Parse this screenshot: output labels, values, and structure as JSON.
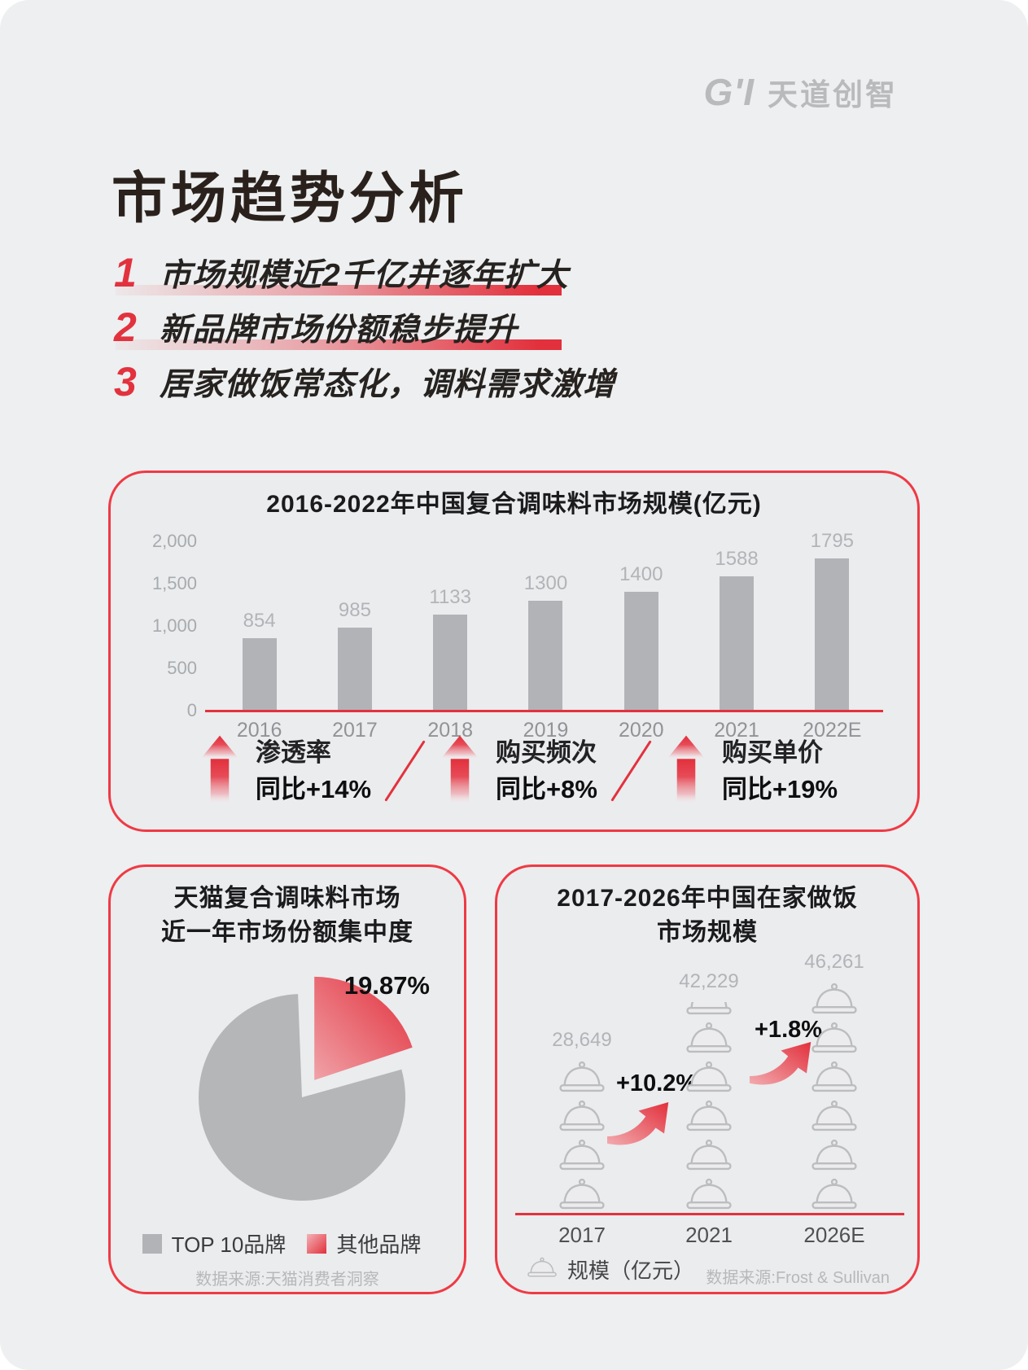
{
  "logo": {
    "mark": "G'I",
    "name": "天道创智"
  },
  "title": "市场趋势分析",
  "points": [
    {
      "num": "1",
      "text": "市场规模近2千亿并逐年扩大"
    },
    {
      "num": "2",
      "text": "新品牌市场份额稳步提升"
    },
    {
      "num": "3",
      "text": "居家做饭常态化，调料需求激增"
    }
  ],
  "indicators": {
    "items": [
      {
        "label": "渗透率",
        "value": "同比+14%"
      },
      {
        "label": "购买频次",
        "value": "同比+8%"
      },
      {
        "label": "购买单价",
        "value": "同比+19%"
      }
    ]
  },
  "chart_data": [
    {
      "type": "bar",
      "title": "2016-2022年中国复合调味料市场规模(亿元)",
      "categories": [
        "2016",
        "2017",
        "2018",
        "2019",
        "2020",
        "2021",
        "2022E"
      ],
      "values": [
        854,
        985,
        1133,
        1300,
        1400,
        1588,
        1795
      ],
      "value_labels": [
        "854",
        "985",
        "1133",
        "1300",
        "1400",
        "1588",
        "1795"
      ],
      "ylim": [
        0,
        2000
      ],
      "yticks": [
        "2,000",
        "1,500",
        "1,000",
        "500",
        "0"
      ],
      "bar_color": "#b1b3b6",
      "baseline_color": "#e2323e",
      "grid": "off",
      "legend": "none"
    },
    {
      "type": "pie",
      "title": "天猫复合调味料市场 近一年市场份额集中度",
      "title_lines": [
        "天猫复合调味料市场",
        "近一年市场份额集中度"
      ],
      "slices": [
        {
          "label": "TOP 10品牌",
          "value": 80.13,
          "color": "#b5b6b8"
        },
        {
          "label": "其他品牌",
          "value": 19.87,
          "color": "#e2303c"
        }
      ],
      "highlight_label": "19.87%",
      "source": "数据来源:天猫消费者洞察"
    },
    {
      "type": "pictograph",
      "title": "2017-2026年中国在家做饭 市场规模",
      "title_lines": [
        "2017-2026年中国在家做饭",
        "市场规模"
      ],
      "categories": [
        "2017",
        "2021",
        "2026E"
      ],
      "values": [
        28649,
        42229,
        46261
      ],
      "value_labels": [
        "28,649",
        "42,229",
        "46,261"
      ],
      "icons": [
        {
          "full": 4,
          "partial": false
        },
        {
          "full": 5,
          "partial": true
        },
        {
          "full": 6,
          "partial": false
        }
      ],
      "icon": "cloche-icon",
      "growth": [
        "+10.2%",
        "+1.8%"
      ],
      "legend": "规模（亿元）",
      "source": "数据来源:Frost & Sullivan",
      "accent": "#e2323e"
    }
  ]
}
